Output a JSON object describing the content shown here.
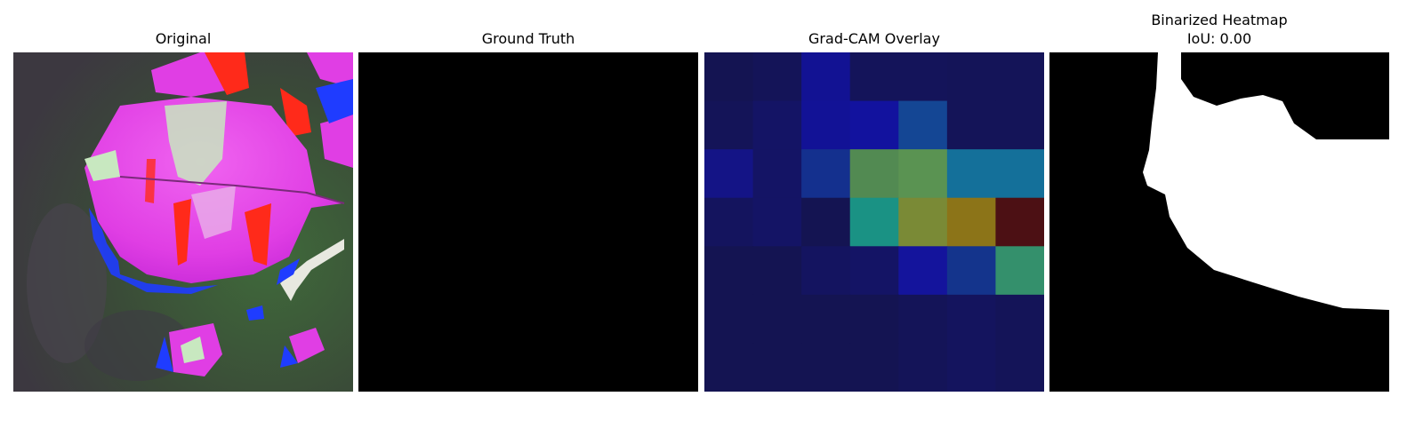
{
  "figure": {
    "panels": [
      {
        "title": "Original"
      },
      {
        "title": "Ground Truth"
      },
      {
        "title": "Grad-CAM Overlay"
      },
      {
        "title": "Binarized Heatmap",
        "subtitle": "IoU: 0.00"
      }
    ]
  },
  "colors": {
    "leaf_magenta": "#e23de6",
    "leaf_highlight": "#c8e8c0",
    "background_green": "#3d5a3b",
    "blue_patch": "#1f3cff",
    "red_patch": "#ff2a1a",
    "mask_black": "#000000",
    "mask_white": "#ffffff"
  },
  "gradcam_cells": [
    [
      "#141452",
      "#141458",
      "#121293",
      "#14145a",
      "#14145a",
      "#141458",
      "#141458"
    ],
    [
      "#141458",
      "#141465",
      "#121296",
      "#12129e",
      "#144694",
      "#141458",
      "#141458"
    ],
    [
      "#141486",
      "#141465",
      "#14308e",
      "#528a52",
      "#5a9352",
      "#14709a",
      "#14709a"
    ],
    [
      "#14145e",
      "#141465",
      "#141452",
      "#1a9284",
      "#7a8a36",
      "#8c7418",
      "#4c1014"
    ],
    [
      "#141452",
      "#141452",
      "#141460",
      "#141465",
      "#14149c",
      "#14348c",
      "#34906c"
    ],
    [
      "#141452",
      "#141452",
      "#141452",
      "#141452",
      "#141458",
      "#14145e",
      "#141458"
    ],
    [
      "#141452",
      "#141452",
      "#141452",
      "#141452",
      "#141458",
      "#14145e",
      "#141458"
    ]
  ]
}
